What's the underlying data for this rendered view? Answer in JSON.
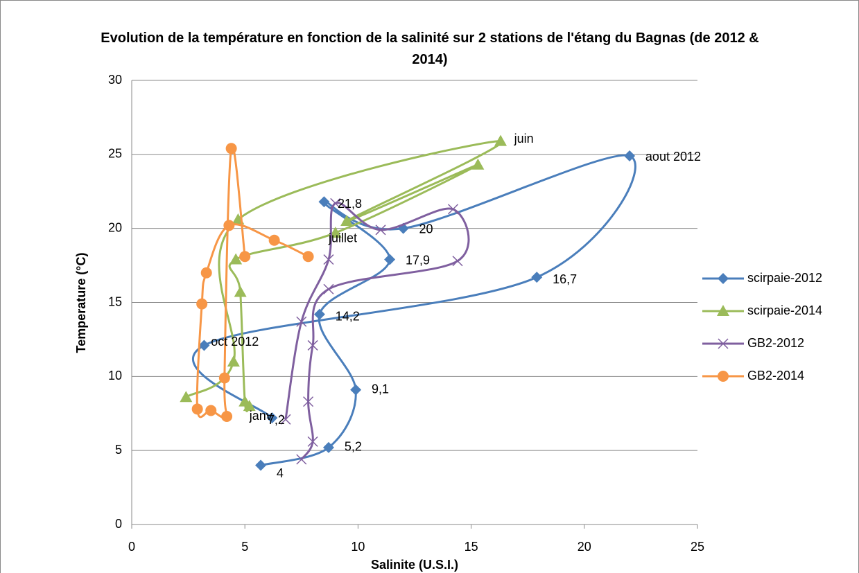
{
  "chart_data": {
    "type": "scatter",
    "title": "Evolution de la température en fonction de la salinité sur 2 stations de l'étang du Bagnas (de 2012 & 2014)",
    "x_label": "Salinite (U.S.I.)",
    "y_label": "Temperature (°C)",
    "xlim": [
      0,
      25
    ],
    "xticks": [
      0,
      5,
      10,
      15,
      20,
      25
    ],
    "ylim": [
      0,
      30
    ],
    "yticks": [
      0,
      5,
      10,
      15,
      20,
      25,
      30
    ],
    "grid": true,
    "legend": "right",
    "smooth": true,
    "series": [
      {
        "name": "scirpaie-2012",
        "color": "#4a7ebb",
        "marker": "diamond",
        "x": [
          5.7,
          8.7,
          9.9,
          8.3,
          11.4,
          8.5,
          12.0,
          22.0,
          17.9,
          3.2,
          6.2
        ],
        "values": [
          4,
          5.2,
          9.1,
          14.2,
          17.9,
          21.8,
          20,
          24.9,
          16.7,
          12.1,
          7.2
        ]
      },
      {
        "name": "scirpaie-2014",
        "color": "#9bbb59",
        "marker": "triangle",
        "x": [
          2.4,
          4.5,
          4.7,
          16.3,
          9.5,
          15.3,
          9.0,
          4.6,
          4.8,
          5.0,
          5.2
        ],
        "values": [
          8.6,
          11.0,
          20.6,
          25.9,
          20.5,
          24.3,
          19.7,
          17.9,
          15.7,
          8.3,
          8.0
        ]
      },
      {
        "name": "GB2-2012",
        "color": "#7f5f9f",
        "marker": "x",
        "x": [
          7.5,
          8.0,
          7.8,
          8.0,
          8.7,
          14.4,
          14.2,
          11.0,
          9.0,
          8.7,
          7.5,
          6.8
        ],
        "values": [
          4.4,
          5.6,
          8.3,
          12.1,
          15.9,
          17.8,
          21.3,
          19.9,
          21.7,
          17.9,
          13.7,
          7.1
        ]
      },
      {
        "name": "GB2-2014",
        "color": "#f79646",
        "marker": "circle",
        "x": [
          7.8,
          6.3,
          4.3,
          3.3,
          3.1,
          2.9,
          3.5,
          4.2,
          4.1,
          4.4,
          5.0
        ],
        "values": [
          18.1,
          19.2,
          20.2,
          17.0,
          14.9,
          7.8,
          7.7,
          7.3,
          9.9,
          25.4,
          18.1
        ]
      }
    ],
    "annotations": [
      {
        "text": "4",
        "x": 6.4,
        "y": 3.4
      },
      {
        "text": "5,2",
        "x": 9.4,
        "y": 5.2
      },
      {
        "text": "9,1",
        "x": 10.6,
        "y": 9.1
      },
      {
        "text": "14,2",
        "x": 9.0,
        "y": 14.0
      },
      {
        "text": "17,9",
        "x": 12.1,
        "y": 17.8
      },
      {
        "text": "21,8",
        "x": 9.1,
        "y": 21.6
      },
      {
        "text": "20",
        "x": 12.7,
        "y": 19.9
      },
      {
        "text": "aout 2012",
        "x": 22.7,
        "y": 24.8
      },
      {
        "text": "16,7",
        "x": 18.6,
        "y": 16.5
      },
      {
        "text": "oct 2012",
        "x": 3.5,
        "y": 12.3
      },
      {
        "text": "janv",
        "x": 5.2,
        "y": 7.3
      },
      {
        "text": "7,2",
        "x": 6.0,
        "y": 7.0
      },
      {
        "text": "juin",
        "x": 16.9,
        "y": 26.0
      },
      {
        "text": "juillet",
        "x": 8.7,
        "y": 19.3
      }
    ]
  }
}
